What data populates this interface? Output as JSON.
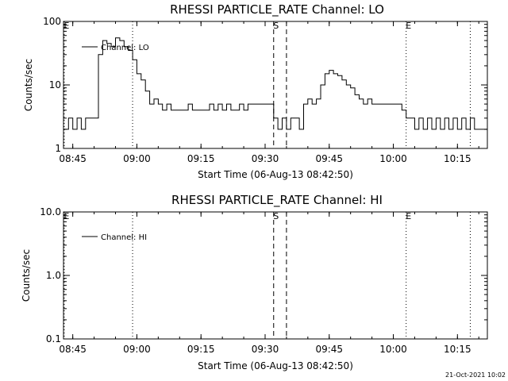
{
  "footer": {
    "timestamp": "21-Oct-2021 10:02"
  },
  "chart_data": [
    {
      "type": "line",
      "title": "RHESSI PARTICLE_RATE Channel: LO",
      "xlabel": "Start Time (06-Aug-13 08:42:50)",
      "ylabel": "Counts/sec",
      "y_scale": "log",
      "ylim": [
        1,
        100
      ],
      "y_ticks": [
        "1",
        "10",
        "100"
      ],
      "xlim": [
        "08:42:50",
        "10:22:00"
      ],
      "x_ticks": [
        "08:45",
        "09:00",
        "09:15",
        "09:30",
        "09:45",
        "10:00",
        "10:15"
      ],
      "series": [
        {
          "name": "Channel: LO",
          "x": [
            "08:43",
            "08:44",
            "08:45",
            "08:46",
            "08:47",
            "08:48",
            "08:49",
            "08:50",
            "08:51",
            "08:52",
            "08:53",
            "08:54",
            "08:55",
            "08:56",
            "08:57",
            "08:58",
            "08:59",
            "09:00",
            "09:01",
            "09:02",
            "09:03",
            "09:04",
            "09:05",
            "09:06",
            "09:07",
            "09:08",
            "09:09",
            "09:10",
            "09:11",
            "09:12",
            "09:13",
            "09:14",
            "09:15",
            "09:16",
            "09:17",
            "09:18",
            "09:19",
            "09:20",
            "09:21",
            "09:22",
            "09:23",
            "09:24",
            "09:25",
            "09:26",
            "09:27",
            "09:28",
            "09:29",
            "09:30",
            "09:31",
            "09:32",
            "09:33",
            "09:34",
            "09:35",
            "09:36",
            "09:37",
            "09:38",
            "09:39",
            "09:40",
            "09:41",
            "09:42",
            "09:43",
            "09:44",
            "09:45",
            "09:46",
            "09:47",
            "09:48",
            "09:49",
            "09:50",
            "09:51",
            "09:52",
            "09:53",
            "09:54",
            "09:55",
            "09:56",
            "09:57",
            "09:58",
            "09:59",
            "10:00",
            "10:01",
            "10:02",
            "10:03",
            "10:04",
            "10:05",
            "10:06",
            "10:07",
            "10:08",
            "10:09",
            "10:10",
            "10:11",
            "10:12",
            "10:13",
            "10:14",
            "10:15",
            "10:16",
            "10:17",
            "10:18",
            "10:19",
            "10:20",
            "10:21"
          ],
          "y": [
            2,
            3,
            2,
            3,
            2,
            3,
            3,
            3,
            30,
            50,
            45,
            40,
            55,
            50,
            40,
            35,
            25,
            15,
            12,
            8,
            5,
            6,
            5,
            4,
            5,
            4,
            4,
            4,
            4,
            5,
            4,
            4,
            4,
            4,
            5,
            4,
            5,
            4,
            5,
            4,
            4,
            5,
            4,
            5,
            5,
            5,
            5,
            5,
            5,
            3,
            2,
            3,
            2,
            3,
            3,
            2,
            5,
            6,
            5,
            6,
            10,
            15,
            17,
            15,
            14,
            12,
            10,
            9,
            7,
            6,
            5,
            6,
            5,
            5,
            5,
            5,
            5,
            5,
            5,
            4,
            3,
            3,
            2,
            3,
            2,
            3,
            2,
            3,
            2,
            3,
            2,
            3,
            2,
            3,
            2,
            3,
            2,
            2,
            2
          ]
        }
      ],
      "annotations": [
        {
          "label": "E",
          "time": "08:43"
        },
        {
          "label": "",
          "time": "08:59"
        },
        {
          "label": "S",
          "time": "09:32"
        },
        {
          "label": "",
          "time": "09:35"
        },
        {
          "label": "E",
          "time": "10:03"
        },
        {
          "label": "",
          "time": "10:18"
        }
      ]
    },
    {
      "type": "line",
      "title": "RHESSI PARTICLE_RATE Channel: HI",
      "xlabel": "Start Time (06-Aug-13 08:42:50)",
      "ylabel": "Counts/sec",
      "y_scale": "log",
      "ylim": [
        0.1,
        10
      ],
      "y_ticks": [
        "0.1",
        "1.0",
        "10.0"
      ],
      "xlim": [
        "08:42:50",
        "10:22:00"
      ],
      "x_ticks": [
        "08:45",
        "09:00",
        "09:15",
        "09:30",
        "09:45",
        "10:00",
        "10:15"
      ],
      "series": [
        {
          "name": "Channel: HI",
          "x": [],
          "y": []
        }
      ],
      "annotations": [
        {
          "label": "E",
          "time": "08:43"
        },
        {
          "label": "",
          "time": "08:59"
        },
        {
          "label": "S",
          "time": "09:32"
        },
        {
          "label": "",
          "time": "09:35"
        },
        {
          "label": "E",
          "time": "10:03"
        },
        {
          "label": "",
          "time": "10:18"
        }
      ]
    }
  ]
}
